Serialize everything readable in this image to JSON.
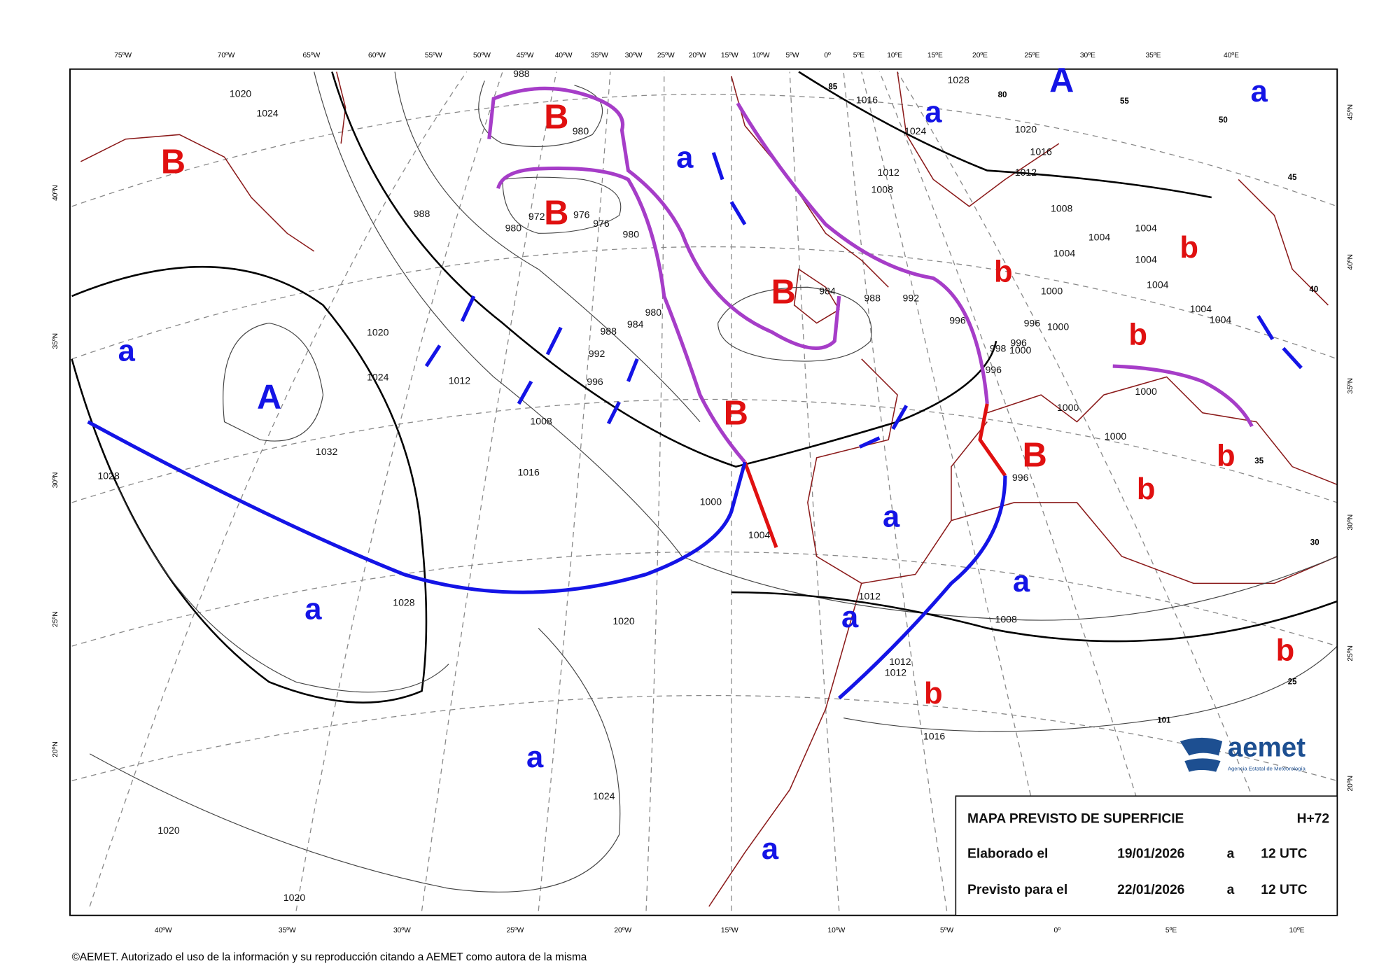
{
  "top_longitudes": [
    "75ºW",
    "70ºW",
    "65ºW",
    "60ºW",
    "55ºW",
    "50ºW",
    "45ºW",
    "40ºW",
    "35ºW",
    "30ºW",
    "25ºW",
    "20ºW",
    "15ºW",
    "10ºW",
    "5ºW",
    "0º",
    "5ºE",
    "10ºE",
    "15ºE",
    "20ºE",
    "25ºE",
    "30ºE",
    "35ºE",
    "40ºE"
  ],
  "bottom_longitudes": [
    "40ºW",
    "35ºW",
    "30ºW",
    "25ºW",
    "20ºW",
    "15ºW",
    "10ºW",
    "5ºW",
    "0º",
    "5ºE",
    "10ºE"
  ],
  "left_latitudes": [
    "40ºN",
    "35ºN",
    "30ºN",
    "25ºN",
    "20ºN"
  ],
  "right_latitudes": [
    "45ºN",
    "40ºN",
    "35ºN",
    "30ºN",
    "25ºN",
    "20ºN"
  ],
  "grid_labels": [
    85,
    80,
    55,
    50,
    45,
    40,
    35,
    30,
    25,
    101
  ],
  "high_centers": [
    "A",
    "A"
  ],
  "low_centers": [
    "B",
    "B",
    "B",
    "B",
    "B",
    "B"
  ],
  "relative_highs": [
    "a",
    "a",
    "a",
    "a",
    "a",
    "a",
    "a",
    "a",
    "a",
    "a"
  ],
  "relative_lows": [
    "b",
    "b",
    "b",
    "b",
    "b",
    "b",
    "b"
  ],
  "isobar_labels": [
    988,
    1020,
    1024,
    1028,
    1016,
    1024,
    1020,
    1016,
    1012,
    1012,
    1008,
    1008,
    1004,
    1004,
    1004,
    1004,
    1004,
    1004,
    1004,
    1000,
    996,
    996,
    1000,
    998,
    996,
    1000,
    996,
    1000,
    1000,
    1000,
    996,
    988,
    980,
    972,
    976,
    976,
    980,
    980,
    984,
    988,
    992,
    980,
    984,
    988,
    992,
    996,
    1012,
    1008,
    1016,
    1020,
    1024,
    1032,
    1028,
    1028,
    1000,
    1004,
    1012,
    1008,
    1020,
    1012,
    1012,
    1016,
    1024,
    1020,
    1020
  ],
  "legend": {
    "title": "MAPA PREVISTO DE SUPERFICIE",
    "lead_time": "H+72",
    "issued_label": "Elaborado el",
    "issued_date": "19/01/2026",
    "issued_at": "a",
    "issued_time": "12 UTC",
    "valid_label": "Previsto para el",
    "valid_date": "22/01/2026",
    "valid_at": "a",
    "valid_time": "12 UTC"
  },
  "logo": {
    "name": "aemet",
    "subtitle": "Agencia Estatal de Meteorología"
  },
  "copyright": "©AEMET. Autorizado el uso de la información y su reproducción citando a AEMET como autora de la misma"
}
